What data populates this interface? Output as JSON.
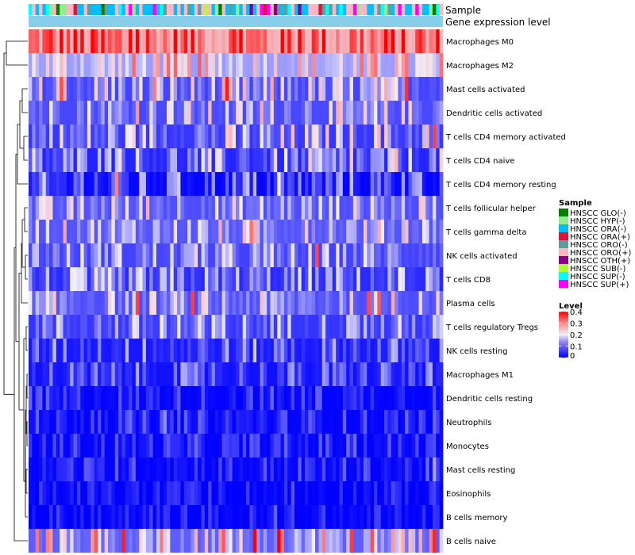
{
  "chart_data": {
    "type": "heatmap",
    "title": "",
    "annotation_rows": [
      "Sample",
      "Gene expression level"
    ],
    "rows": [
      {
        "label": "Macrophages M0",
        "mean": 0.3,
        "spread": 0.12
      },
      {
        "label": "Macrophages M2",
        "mean": 0.17,
        "spread": 0.09
      },
      {
        "label": "Mast cells activated",
        "mean": 0.1,
        "spread": 0.1
      },
      {
        "label": "Dendritic cells activated",
        "mean": 0.1,
        "spread": 0.09
      },
      {
        "label": "T cells CD4 memory activated",
        "mean": 0.09,
        "spread": 0.1
      },
      {
        "label": "T cells CD4 naive",
        "mean": 0.07,
        "spread": 0.09
      },
      {
        "label": "T cells CD4 memory resting",
        "mean": 0.04,
        "spread": 0.08
      },
      {
        "label": "T cells follicular helper",
        "mean": 0.1,
        "spread": 0.08
      },
      {
        "label": "T cells gamma delta",
        "mean": 0.11,
        "spread": 0.09
      },
      {
        "label": "NK cells activated",
        "mean": 0.09,
        "spread": 0.08
      },
      {
        "label": "T cells CD8",
        "mean": 0.07,
        "spread": 0.08
      },
      {
        "label": "Plasma cells",
        "mean": 0.1,
        "spread": 0.08
      },
      {
        "label": "T cells regulatory  Tregs",
        "mean": 0.08,
        "spread": 0.08
      },
      {
        "label": "NK cells resting",
        "mean": 0.05,
        "spread": 0.07
      },
      {
        "label": "Macrophages M1",
        "mean": 0.04,
        "spread": 0.06
      },
      {
        "label": "Dendritic cells resting",
        "mean": 0.02,
        "spread": 0.04
      },
      {
        "label": "Neutrophils",
        "mean": 0.02,
        "spread": 0.04
      },
      {
        "label": "Monocytes",
        "mean": 0.02,
        "spread": 0.04
      },
      {
        "label": "Mast cells resting",
        "mean": 0.02,
        "spread": 0.04
      },
      {
        "label": "Eosinophils",
        "mean": 0.01,
        "spread": 0.03
      },
      {
        "label": "B cells memory",
        "mean": 0.01,
        "spread": 0.03
      },
      {
        "label": "B cells naive",
        "mean": 0.14,
        "spread": 0.14
      }
    ],
    "n_samples": 120,
    "color_scale": {
      "min": 0,
      "max": 0.4,
      "low": "#0000ff",
      "mid": "#f2eef8",
      "high": "#ff0000"
    },
    "sample_groups": [
      {
        "label": "HNSCC GLO(-)",
        "color": "#008000"
      },
      {
        "label": "HNSCC HYP(-)",
        "color": "#90ee90"
      },
      {
        "label": "HNSCC ORA(-)",
        "color": "#00bfff"
      },
      {
        "label": "HNSCC ORA(+)",
        "color": "#dc143c"
      },
      {
        "label": "HNSCC ORO(-)",
        "color": "#5f9ea0"
      },
      {
        "label": "HNSCC ORO(+)",
        "color": "#ffb6c1"
      },
      {
        "label": "HNSCC OTH(+)",
        "color": "#8b008b"
      },
      {
        "label": "HNSCC SUB(-)",
        "color": "#adff2f"
      },
      {
        "label": "HNSCC SUP(-)",
        "color": "#00ffff"
      },
      {
        "label": "HNSCC SUP(+)",
        "color": "#ff00ff"
      }
    ],
    "legend": {
      "sample_title": "Sample",
      "level_title": "Level",
      "level_ticks": [
        "0.4",
        "0.3",
        "0.2",
        "0.1",
        "0"
      ],
      "level_tick_values": [
        0.4,
        0.3,
        0.2,
        0.1,
        0
      ],
      "position": "right"
    },
    "expression_bar_color": "#87ceeb"
  }
}
